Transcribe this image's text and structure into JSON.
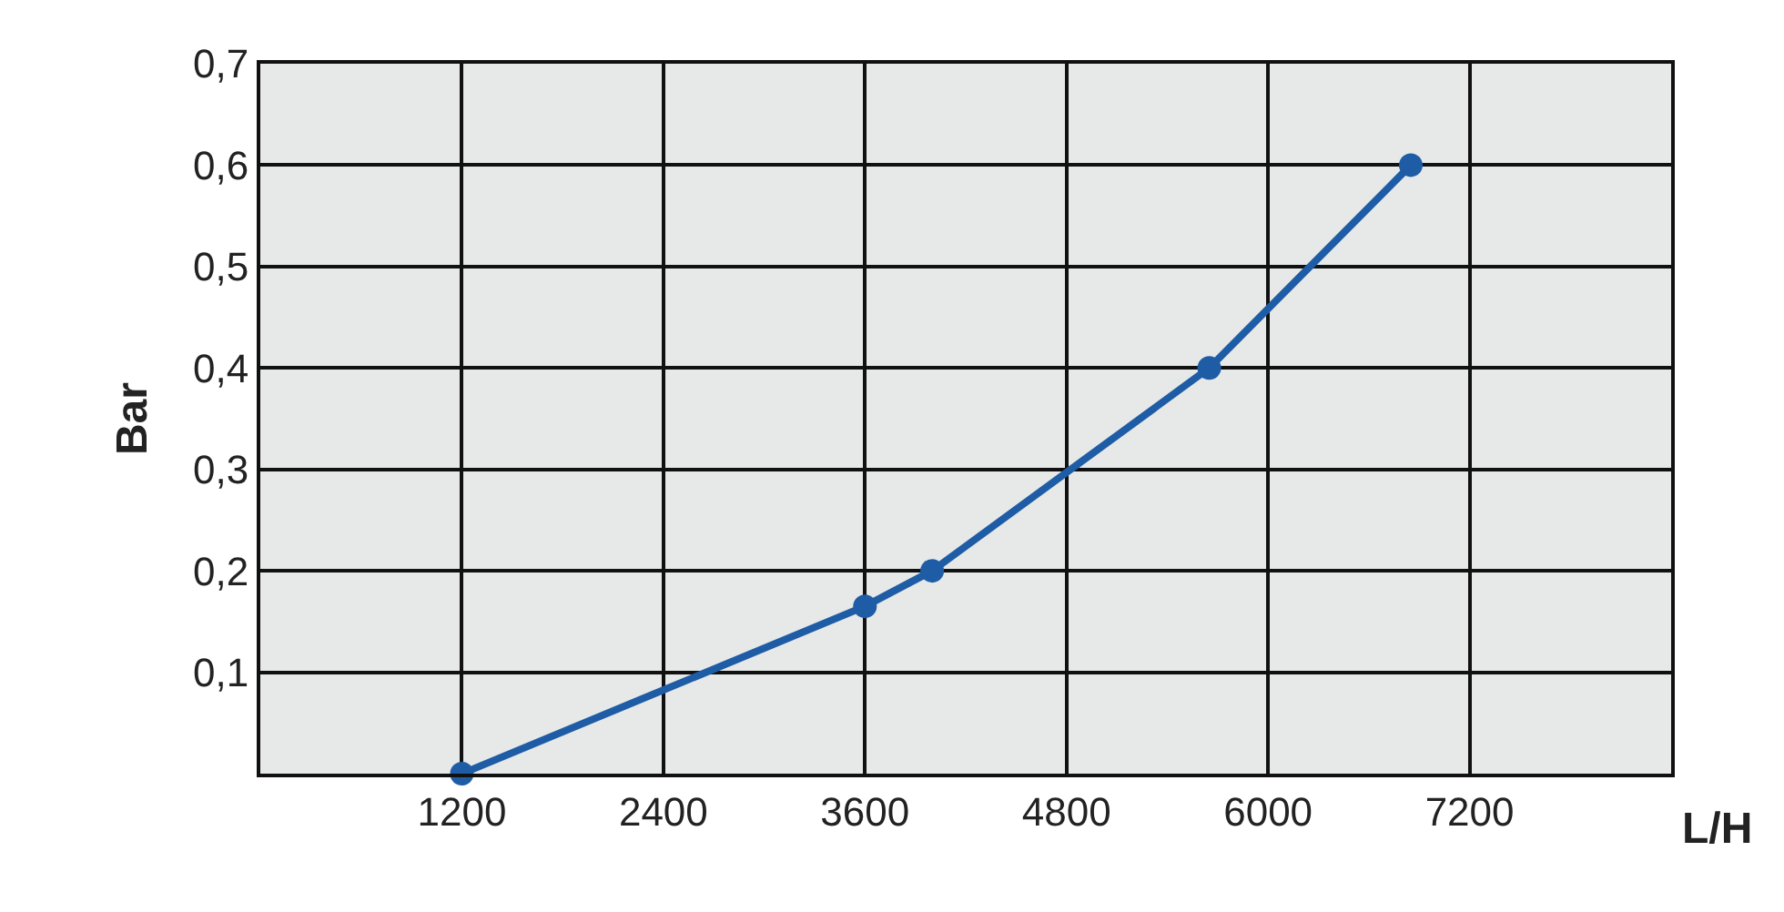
{
  "chart_data": {
    "type": "line",
    "xlabel": "L/H",
    "ylabel": "Bar",
    "x": [
      1200,
      3600,
      4000,
      5650,
      6850
    ],
    "series": [
      {
        "color": "#1f5ca6",
        "values": [
          0,
          0.165,
          0.2,
          0.4,
          0.6
        ]
      }
    ],
    "xlim": [
      0,
      8400
    ],
    "xticks": [
      1200,
      2400,
      3600,
      4800,
      6000,
      7200
    ],
    "ylim": [
      0,
      0.7
    ],
    "yticks": [
      {
        "value": 0.1,
        "label": "0,1"
      },
      {
        "value": 0.2,
        "label": "0,2"
      },
      {
        "value": 0.3,
        "label": "0,3"
      },
      {
        "value": 0.4,
        "label": "0,4"
      },
      {
        "value": 0.5,
        "label": "0,5"
      },
      {
        "value": 0.6,
        "label": "0,6"
      },
      {
        "value": 0.7,
        "label": "0,7"
      }
    ],
    "grid": true,
    "marker": "circle",
    "line_style": "solid"
  }
}
